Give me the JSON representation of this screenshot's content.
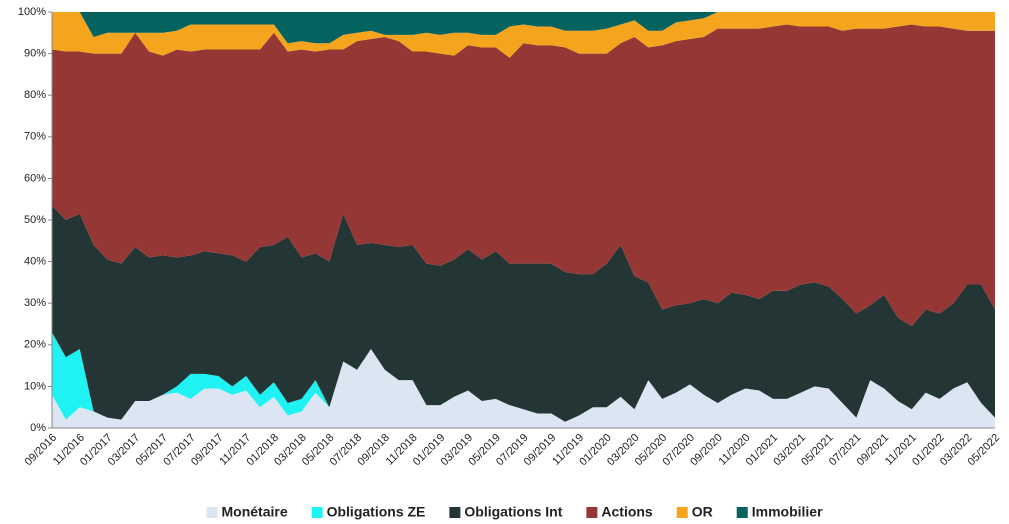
{
  "chart_data": {
    "type": "stacked_area_percent",
    "categories": [
      "09/2016",
      null,
      "11/2016",
      null,
      "01/2017",
      null,
      "03/2017",
      null,
      "05/2017",
      null,
      "07/2017",
      null,
      "09/2017",
      null,
      "11/2017",
      null,
      "01/2018",
      null,
      "03/2018",
      null,
      "05/2018",
      null,
      "07/2018",
      null,
      "09/2018",
      null,
      "11/2018",
      null,
      "01/2019",
      null,
      "03/2019",
      null,
      "05/2019",
      null,
      "07/2019",
      null,
      "09/2019",
      null,
      "11/2019",
      null,
      "01/2020",
      null,
      "03/2020",
      null,
      "05/2020",
      null,
      "07/2020",
      null,
      "09/2020",
      null,
      "11/2020",
      null,
      "01/2021",
      null,
      "03/2021",
      null,
      "05/2021",
      null,
      "07/2021",
      null,
      "09/2021",
      null,
      "11/2021",
      null,
      "01/2022",
      null,
      "03/2022",
      null,
      "05/2022"
    ],
    "series": [
      {
        "name": "Monétaire",
        "color": "#dce6f2",
        "values": [
          8,
          2,
          5,
          4,
          2.5,
          2,
          6.5,
          6.5,
          8,
          8.5,
          7,
          9.5,
          9.5,
          8,
          9,
          5,
          7.5,
          3,
          4,
          8.5,
          5,
          16,
          14,
          19,
          14,
          11.5,
          11.5,
          5.5,
          5.5,
          7.5,
          9,
          6.5,
          7,
          5.5,
          4.5,
          3.5,
          3.5,
          1.5,
          3,
          5,
          5,
          7.5,
          4.5,
          11.5,
          7,
          8.5,
          10.5,
          8,
          6,
          8,
          9.5,
          9,
          7,
          7,
          8.5,
          10,
          9.5,
          6,
          2.5,
          11.5,
          9.5,
          6.5,
          4.5,
          8.5,
          7,
          9.5,
          11,
          6,
          2.5
        ]
      },
      {
        "name": "Obligations ZE",
        "color": "#1ef2f2",
        "values": [
          15,
          15,
          14,
          0,
          0,
          0,
          0,
          0,
          0,
          1.5,
          6,
          3.5,
          3,
          2,
          3.5,
          3,
          3.5,
          3,
          3,
          3,
          0,
          0,
          0,
          0,
          0,
          0,
          0,
          0,
          0,
          0,
          0,
          0,
          0,
          0,
          0,
          0,
          0,
          0,
          0,
          0,
          0,
          0,
          0,
          0,
          0,
          0,
          0,
          0,
          0,
          0,
          0,
          0,
          0,
          0,
          0,
          0,
          0,
          0,
          0,
          0,
          0,
          0,
          0,
          0,
          0,
          0,
          0,
          0,
          0
        ]
      },
      {
        "name": "Obligations Int",
        "color": "#243535",
        "values": [
          30.5,
          33,
          32.5,
          40,
          38,
          37.5,
          37,
          34.5,
          33.5,
          31,
          28.5,
          29.5,
          29.5,
          31.5,
          27.5,
          35.5,
          33,
          40,
          34,
          30.5,
          35,
          35.5,
          30,
          25.5,
          30,
          32,
          32.5,
          34,
          33.5,
          33,
          34,
          34,
          35.5,
          34,
          35,
          36,
          36,
          36,
          34,
          32,
          34.5,
          36.5,
          32,
          23.5,
          21.5,
          21,
          19.5,
          23,
          24,
          24.5,
          22.5,
          22,
          26,
          26,
          26,
          25,
          24.5,
          25,
          25,
          18,
          22.5,
          20,
          20,
          20,
          20.5,
          20.5,
          23.5,
          28.5,
          26
        ]
      },
      {
        "name": "Actions",
        "color": "#953735",
        "values": [
          37.5,
          40.5,
          39,
          46,
          49.5,
          50.5,
          51.5,
          49.5,
          48,
          50,
          49,
          48.5,
          49,
          49.5,
          51,
          47.5,
          51,
          44.5,
          50,
          48.5,
          51,
          39.5,
          49,
          49,
          50,
          49.5,
          46.5,
          51,
          51,
          49,
          49,
          51,
          49,
          49.5,
          53,
          52.5,
          52.5,
          54,
          53,
          53,
          50.5,
          48.5,
          57.5,
          56.5,
          63.5,
          63.5,
          63.5,
          63,
          66,
          63.5,
          64,
          65,
          63.5,
          64,
          62,
          61.5,
          62.5,
          64.5,
          68.5,
          66.5,
          64,
          70,
          72.5,
          68,
          69,
          66,
          61,
          61,
          67
        ]
      },
      {
        "name": "OR",
        "color": "#f5a41d",
        "values": [
          9,
          9.5,
          9.5,
          4,
          5,
          5,
          0,
          4.5,
          5.5,
          4.5,
          6.5,
          6,
          6,
          6,
          6,
          6,
          2,
          2,
          2,
          2,
          1.5,
          3.5,
          2,
          2,
          0.5,
          1.5,
          4,
          4.5,
          4.5,
          5.5,
          3,
          3,
          3,
          7.5,
          4.5,
          4.5,
          4.5,
          4,
          5.5,
          5.5,
          6,
          4.5,
          4,
          4,
          3.5,
          4.5,
          4.5,
          4.5,
          4,
          4,
          4,
          4,
          3.5,
          3,
          3.5,
          3.5,
          3.5,
          4.5,
          4,
          4,
          4,
          3.5,
          3,
          3.5,
          3.5,
          4,
          4.5,
          4.5,
          4.5
        ]
      },
      {
        "name": "Immobilier",
        "color": "#04625f",
        "values": [
          0,
          0,
          0,
          6,
          5,
          5,
          5,
          5,
          5,
          4.5,
          3,
          3,
          3,
          3,
          3,
          3,
          3,
          7.5,
          7,
          7.5,
          7.5,
          5.5,
          5,
          4.5,
          5.5,
          5.5,
          5.5,
          5,
          5.5,
          5,
          5,
          5.5,
          5.5,
          3.5,
          3,
          3.5,
          3.5,
          4.5,
          4.5,
          4.5,
          4,
          3,
          2,
          4.5,
          4.5,
          2.5,
          2,
          1.5,
          0,
          0,
          0,
          0,
          0,
          0,
          0,
          0,
          0,
          0,
          0,
          0,
          0,
          0,
          0,
          0,
          0,
          0,
          0,
          0,
          0
        ]
      }
    ],
    "ylim": [
      0,
      100
    ],
    "yticks": [
      {
        "value": 0,
        "label": "0%"
      },
      {
        "value": 10,
        "label": "10%"
      },
      {
        "value": 20,
        "label": "20%"
      },
      {
        "value": 30,
        "label": "30%"
      },
      {
        "value": 40,
        "label": "40%"
      },
      {
        "value": 50,
        "label": "50%"
      },
      {
        "value": 60,
        "label": "60%"
      },
      {
        "value": 70,
        "label": "70%"
      },
      {
        "value": 80,
        "label": "80%"
      },
      {
        "value": 90,
        "label": "90%"
      },
      {
        "value": 100,
        "label": "100%"
      }
    ],
    "legend": "bottom"
  }
}
